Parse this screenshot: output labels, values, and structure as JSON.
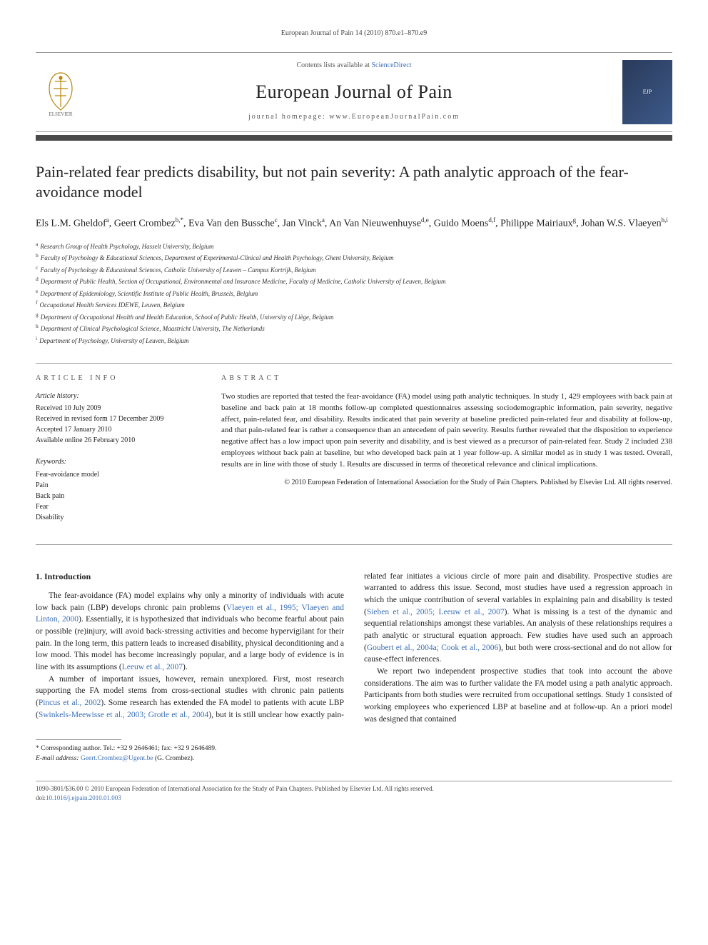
{
  "header": {
    "citation": "European Journal of Pain 14 (2010) 870.e1–870.e9",
    "contents_prefix": "Contents lists available at ",
    "contents_link": "ScienceDirect",
    "journal_title": "European Journal of Pain",
    "homepage_label": "journal homepage: www.EuropeanJournalPain.com",
    "publisher_logo": "ELSEVIER",
    "cover_logo": "EJP"
  },
  "article": {
    "title": "Pain-related fear predicts disability, but not pain severity: A path analytic approach of the fear-avoidance model",
    "authors_html": "Els L.M. Gheldof<sup>a</sup>, Geert Crombez<sup>b,*</sup>, Eva Van den Bussche<sup>c</sup>, Jan Vinck<sup>a</sup>, An Van Nieuwenhuyse<sup>d,e</sup>, Guido Moens<sup>d,f</sup>, Philippe Mairiaux<sup>g</sup>, Johan W.S. Vlaeyen<sup>h,i</sup>",
    "affiliations": [
      {
        "sup": "a",
        "text": "Research Group of Health Psychology, Hasselt University, Belgium"
      },
      {
        "sup": "b",
        "text": "Faculty of Psychology & Educational Sciences, Department of Experimental-Clinical and Health Psychology, Ghent University, Belgium"
      },
      {
        "sup": "c",
        "text": "Faculty of Psychology & Educational Sciences, Catholic University of Leuven – Campus Kortrijk, Belgium"
      },
      {
        "sup": "d",
        "text": "Department of Public Health, Section of Occupational, Environmental and Insurance Medicine, Faculty of Medicine, Catholic University of Leuven, Belgium"
      },
      {
        "sup": "e",
        "text": "Department of Epidemiology, Scientific Institute of Public Health, Brussels, Belgium"
      },
      {
        "sup": "f",
        "text": "Occupational Health Services IDEWE, Leuven, Belgium"
      },
      {
        "sup": "g",
        "text": "Department of Occupational Health and Health Education, School of Public Health, University of Liège, Belgium"
      },
      {
        "sup": "h",
        "text": "Department of Clinical Psychological Science, Maastricht University, The Netherlands"
      },
      {
        "sup": "i",
        "text": "Department of Psychology, University of Leuven, Belgium"
      }
    ]
  },
  "info": {
    "label": "ARTICLE INFO",
    "history_label": "Article history:",
    "history": [
      "Received 10 July 2009",
      "Received in revised form 17 December 2009",
      "Accepted 17 January 2010",
      "Available online 26 February 2010"
    ],
    "keywords_label": "Keywords:",
    "keywords": [
      "Fear-avoidance model",
      "Pain",
      "Back pain",
      "Fear",
      "Disability"
    ]
  },
  "abstract": {
    "label": "ABSTRACT",
    "text": "Two studies are reported that tested the fear-avoidance (FA) model using path analytic techniques. In study 1, 429 employees with back pain at baseline and back pain at 18 months follow-up completed questionnaires assessing sociodemographic information, pain severity, negative affect, pain-related fear, and disability. Results indicated that pain severity at baseline predicted pain-related fear and disability at follow-up, and that pain-related fear is rather a consequence than an antecedent of pain severity. Results further revealed that the disposition to experience negative affect has a low impact upon pain severity and disability, and is best viewed as a precursor of pain-related fear. Study 2 included 238 employees without back pain at baseline, but who developed back pain at 1 year follow-up. A similar model as in study 1 was tested. Overall, results are in line with those of study 1. Results are discussed in terms of theoretical relevance and clinical implications.",
    "copyright": "© 2010 European Federation of International Association for the Study of Pain Chapters. Published by Elsevier Ltd. All rights reserved."
  },
  "body": {
    "heading": "1. Introduction",
    "p1_pre": "The fear-avoidance (FA) model explains why only a minority of individuals with acute low back pain (LBP) develops chronic pain problems (",
    "p1_link1": "Vlaeyen et al., 1995; Vlaeyen and Linton, 2000",
    "p1_mid": "). Essentially, it is hypothesized that individuals who become fearful about pain or possible (re)injury, will avoid back-stressing activities and become hypervigilant for their pain. In the long term, this pattern leads to increased disability, physical deconditioning and a low mood. This model has become increasingly popular, and a large body of evidence is in line with its assumptions (",
    "p1_link2": "Leeuw et al., 2007",
    "p1_post": ").",
    "p2_pre": "A number of important issues, however, remain unexplored. First, most research supporting the FA model stems from cross-sectional studies with chronic pain patients (",
    "p2_link1": "Pincus et al., 2002",
    "p2_mid1": "). Some research has extended the FA model to patients with acute LBP (",
    "p2_link2": "Swinkels-Meewisse et al., 2003; Grotle et al., 2004",
    "p2_mid2": "), but it is still unclear how exactly pain-related fear initiates a vicious circle of more pain and disability. Prospective studies are warranted to address this issue. Second, most studies have used a regression approach in which the unique contribution of several variables in explaining pain and disability is tested (",
    "p2_link3": "Sieben et al., 2005; Leeuw et al., 2007",
    "p2_mid3": "). What is missing is a test of the dynamic and sequential relationships amongst these variables. An analysis of these relationships requires a path analytic or structural equation approach. Few studies have used such an approach (",
    "p2_link4": "Goubert et al., 2004a; Cook et al., 2006",
    "p2_post": "), but both were cross-sectional and do not allow for cause-effect inferences.",
    "p3": "We report two independent prospective studies that took into account the above considerations. The aim was to further validate the FA model using a path analytic approach. Participants from both studies were recruited from occupational settings. Study 1 consisted of working employees who experienced LBP at baseline and at follow-up. An a priori model was designed that contained"
  },
  "footnote": {
    "corr": "* Corresponding author. Tel.: +32 9 2646461; fax: +32 9 2646489.",
    "email_label": "E-mail address: ",
    "email": "Geert.Crombez@Ugent.be",
    "email_post": " (G. Crombez)."
  },
  "footer": {
    "left": "1090-3801/$36.00 © 2010 European Federation of International Association for the Study of Pain Chapters. Published by Elsevier Ltd. All rights reserved.",
    "doi_label": "doi:",
    "doi": "10.1016/j.ejpain.2010.01.003"
  }
}
